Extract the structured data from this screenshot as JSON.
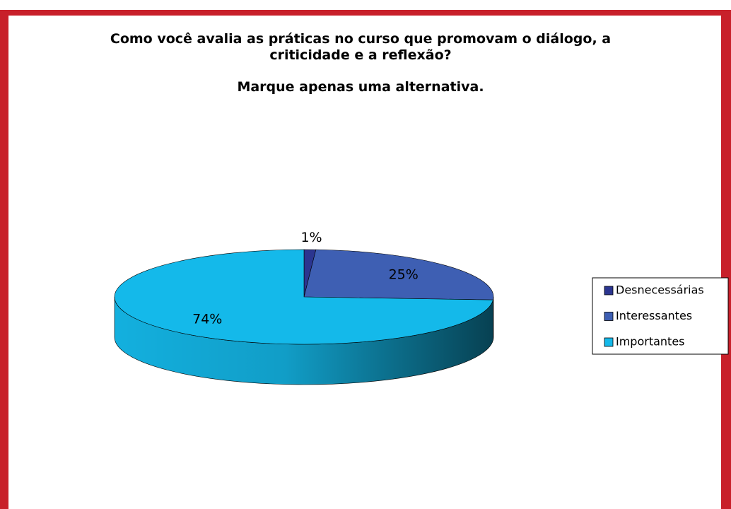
{
  "chart_data": {
    "type": "pie",
    "title": "Como você avalia as práticas no curso  que promovam o diálogo, a criticidade e a reflexão?",
    "subtitle": "Marque apenas uma alternativa.",
    "categories": [
      "Desnecessárias",
      "Interessantes",
      "Importantes"
    ],
    "values": [
      1,
      25,
      74
    ],
    "value_labels": [
      "1%",
      "25%",
      "74%"
    ],
    "colors": [
      "#2b3590",
      "#3e5fb3",
      "#14b9ea"
    ],
    "legend": "right"
  }
}
